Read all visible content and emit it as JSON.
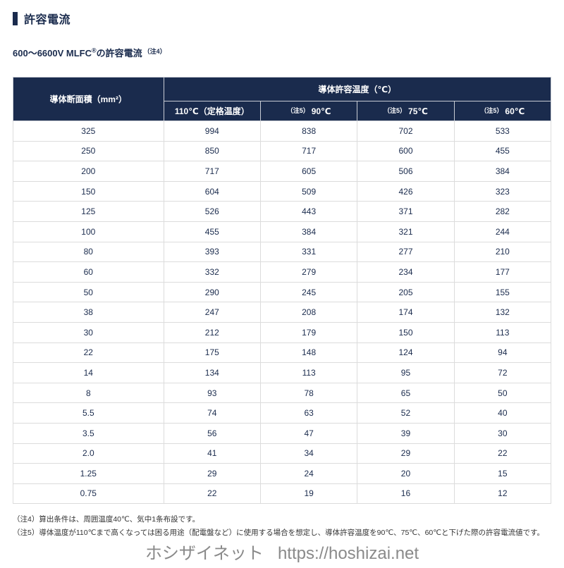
{
  "header": {
    "title": "許容電流",
    "subtitle_prefix": "600〜6600V MLFC",
    "subtitle_reg": "®",
    "subtitle_suffix": "の許容電流",
    "subtitle_note": "（注4）"
  },
  "table": {
    "corner_header": "導体断面積（mm²）",
    "temp_group_header": "導体許容温度（℃）",
    "sub_headers": [
      {
        "note": "",
        "label": "110℃（定格温度）"
      },
      {
        "note": "（注5）",
        "label": "90℃"
      },
      {
        "note": "（注5）",
        "label": "75℃"
      },
      {
        "note": "（注5）",
        "label": "60℃"
      }
    ],
    "rows": [
      [
        "325",
        "994",
        "838",
        "702",
        "533"
      ],
      [
        "250",
        "850",
        "717",
        "600",
        "455"
      ],
      [
        "200",
        "717",
        "605",
        "506",
        "384"
      ],
      [
        "150",
        "604",
        "509",
        "426",
        "323"
      ],
      [
        "125",
        "526",
        "443",
        "371",
        "282"
      ],
      [
        "100",
        "455",
        "384",
        "321",
        "244"
      ],
      [
        "80",
        "393",
        "331",
        "277",
        "210"
      ],
      [
        "60",
        "332",
        "279",
        "234",
        "177"
      ],
      [
        "50",
        "290",
        "245",
        "205",
        "155"
      ],
      [
        "38",
        "247",
        "208",
        "174",
        "132"
      ],
      [
        "30",
        "212",
        "179",
        "150",
        "113"
      ],
      [
        "22",
        "175",
        "148",
        "124",
        "94"
      ],
      [
        "14",
        "134",
        "113",
        "95",
        "72"
      ],
      [
        "8",
        "93",
        "78",
        "65",
        "50"
      ],
      [
        "5.5",
        "74",
        "63",
        "52",
        "40"
      ],
      [
        "3.5",
        "56",
        "47",
        "39",
        "30"
      ],
      [
        "2.0",
        "41",
        "34",
        "29",
        "22"
      ],
      [
        "1.25",
        "29",
        "24",
        "20",
        "15"
      ],
      [
        "0.75",
        "22",
        "19",
        "16",
        "12"
      ]
    ]
  },
  "footnotes": [
    "（注4）算出条件は、周囲温度40℃、気中1条布設です。",
    "（注5）導体温度が110℃まで高くなっては困る用途（配電盤など）に使用する場合を想定し、導体許容温度を90℃、75℃、60℃と下げた際の許容電流値です。"
  ],
  "footer": {
    "site_name": "ホシザイネット",
    "url": "https://hoshizai.net"
  },
  "colors": {
    "navy": "#1a2b4d",
    "table_border": "#dcdcdc",
    "footer_gray": "#8a8a8a"
  }
}
